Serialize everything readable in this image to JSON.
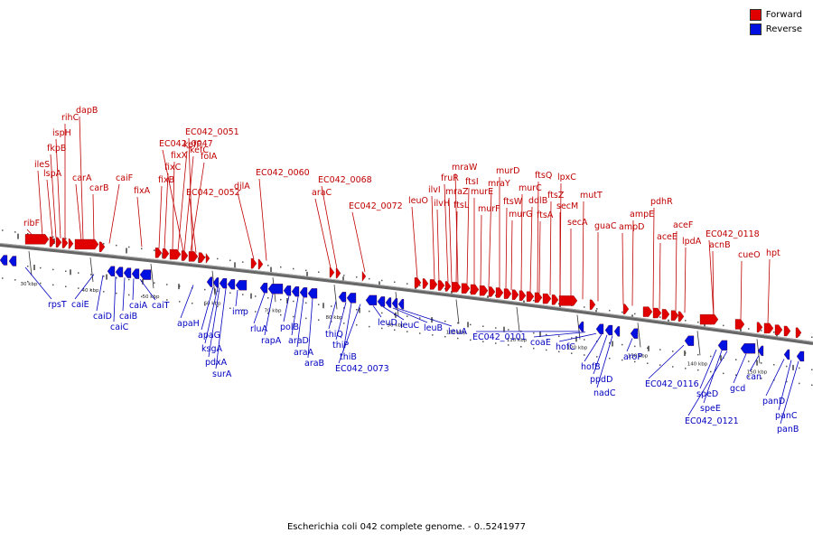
{
  "caption": "Escherichia coli 042 complete genome. - 0..5241977",
  "legend": {
    "forward": {
      "label": "Forward",
      "color": "#e00000"
    },
    "reverse": {
      "label": "Reverse",
      "color": "#0010e0"
    }
  },
  "colors": {
    "forward_fill": "#e00000",
    "forward_text": "#c00000",
    "reverse_fill": "#0010e0",
    "reverse_text": "#0000c0",
    "backbone": "#808080"
  },
  "scale_labels": [
    "30 kbp",
    "40 kbp",
    "50 kbp",
    "60 kbp",
    "70 kbp",
    "80 kbp",
    "90 kbp",
    "100 kbp",
    "110 kbp",
    "120 kbp",
    "130 kbp",
    "140 kbp",
    "150 kbp"
  ],
  "forward_genes": [
    "ribF",
    "ileS",
    "lspA",
    "fkpB",
    "ispH",
    "rihC",
    "dapB",
    "carA",
    "carB",
    "caiF",
    "fixA",
    "fixB",
    "fixC",
    "fixX",
    "kefF",
    "kefC",
    "folA",
    "EC042_0047",
    "EC042_0051",
    "EC042_0052",
    "djlA",
    "EC042_0060",
    "araC",
    "EC042_0068",
    "EC042_0072",
    "leuO",
    "ilvI",
    "ilvH",
    "fruR",
    "mraZ",
    "ftsL",
    "mraW",
    "ftsI",
    "murE",
    "murF",
    "mraY",
    "murD",
    "ftsW",
    "murG",
    "murC",
    "ddlB",
    "ftsQ",
    "ftsA",
    "ftsZ",
    "lpxC",
    "secM",
    "secA",
    "mutT",
    "guaC",
    "ampD",
    "ampE",
    "pdhR",
    "aceE",
    "aceF",
    "lpdA",
    "acnB",
    "EC042_0118",
    "cueO",
    "hpt"
  ],
  "reverse_genes": [
    "rpsT",
    "caiE",
    "caiD",
    "caiC",
    "caiB",
    "caiA",
    "caiT",
    "apaH",
    "apaG",
    "ksgA",
    "pdxA",
    "surA",
    "imp",
    "rluA",
    "rapA",
    "polB",
    "araD",
    "araA",
    "araB",
    "thiQ",
    "thiP",
    "thiB",
    "EC042_0073",
    "leuD",
    "leuC",
    "leuB",
    "leuA",
    "EC042_0101",
    "coaE",
    "hofC",
    "hofB",
    "ppdD",
    "nadC",
    "aroP",
    "EC042_0116",
    "speD",
    "speE",
    "EC042_0121",
    "gcd",
    "can",
    "panD",
    "panC",
    "panB"
  ]
}
